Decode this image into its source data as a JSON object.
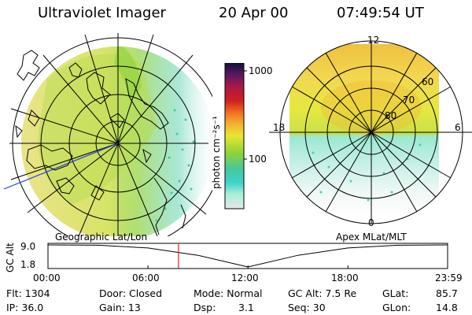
{
  "header": {
    "title": "Ultraviolet Imager",
    "date": "20 Apr 00",
    "time": "07:49:54 UT"
  },
  "colorbar": {
    "label": "photon cm⁻²s⁻¹",
    "ticks": [
      "1000",
      "100"
    ],
    "scale": "log",
    "stops": [
      "#e8e8e8",
      "#a8eed8",
      "#3fd2c8",
      "#44c8a0",
      "#8ed23a",
      "#e6e632",
      "#f4b230",
      "#f07020",
      "#d02020",
      "#a81848",
      "#5a1860",
      "#10103a"
    ]
  },
  "geo_map": {
    "caption": "Geographic Lat/Lon",
    "base_color": "#e9e87c"
  },
  "mag_map": {
    "caption": "Apex MLat/MLT",
    "mlt_labels": {
      "top": "12",
      "left": "18",
      "right": "6",
      "bottom": "0"
    },
    "mlat_labels": [
      "60",
      "70",
      "80"
    ]
  },
  "altitude_plot": {
    "axis_title": "GC Alt",
    "y_ticks": [
      "9.0",
      "1.8"
    ],
    "x_ticks": [
      "00:00",
      "06:00",
      "12:00",
      "18:00",
      "23:59"
    ],
    "marker_time": "07:49:54",
    "marker_color": "#e02020",
    "curve": [
      {
        "t": 0,
        "alt": 9.0
      },
      {
        "t": 3,
        "alt": 8.9
      },
      {
        "t": 6,
        "alt": 8.0
      },
      {
        "t": 9,
        "alt": 5.6
      },
      {
        "t": 12,
        "alt": 1.8
      },
      {
        "t": 15,
        "alt": 5.6
      },
      {
        "t": 18,
        "alt": 8.0
      },
      {
        "t": 21,
        "alt": 8.9
      },
      {
        "t": 23.98,
        "alt": 9.0
      }
    ]
  },
  "info": {
    "flt": "Flt: 1304",
    "ip": "IP: 36.0",
    "door": "Door: Closed",
    "gain": "Gain: 13",
    "mode": "Mode: Normal",
    "dsp_label": "Dsp:",
    "dsp_value": "3.1",
    "gcalt": "GC Alt: 7.5 Re",
    "seq": "Seq: 30",
    "glat_label": "GLat:",
    "glat_value": "85.7",
    "glon_label": "GLon:",
    "glon_value": "14.8"
  }
}
